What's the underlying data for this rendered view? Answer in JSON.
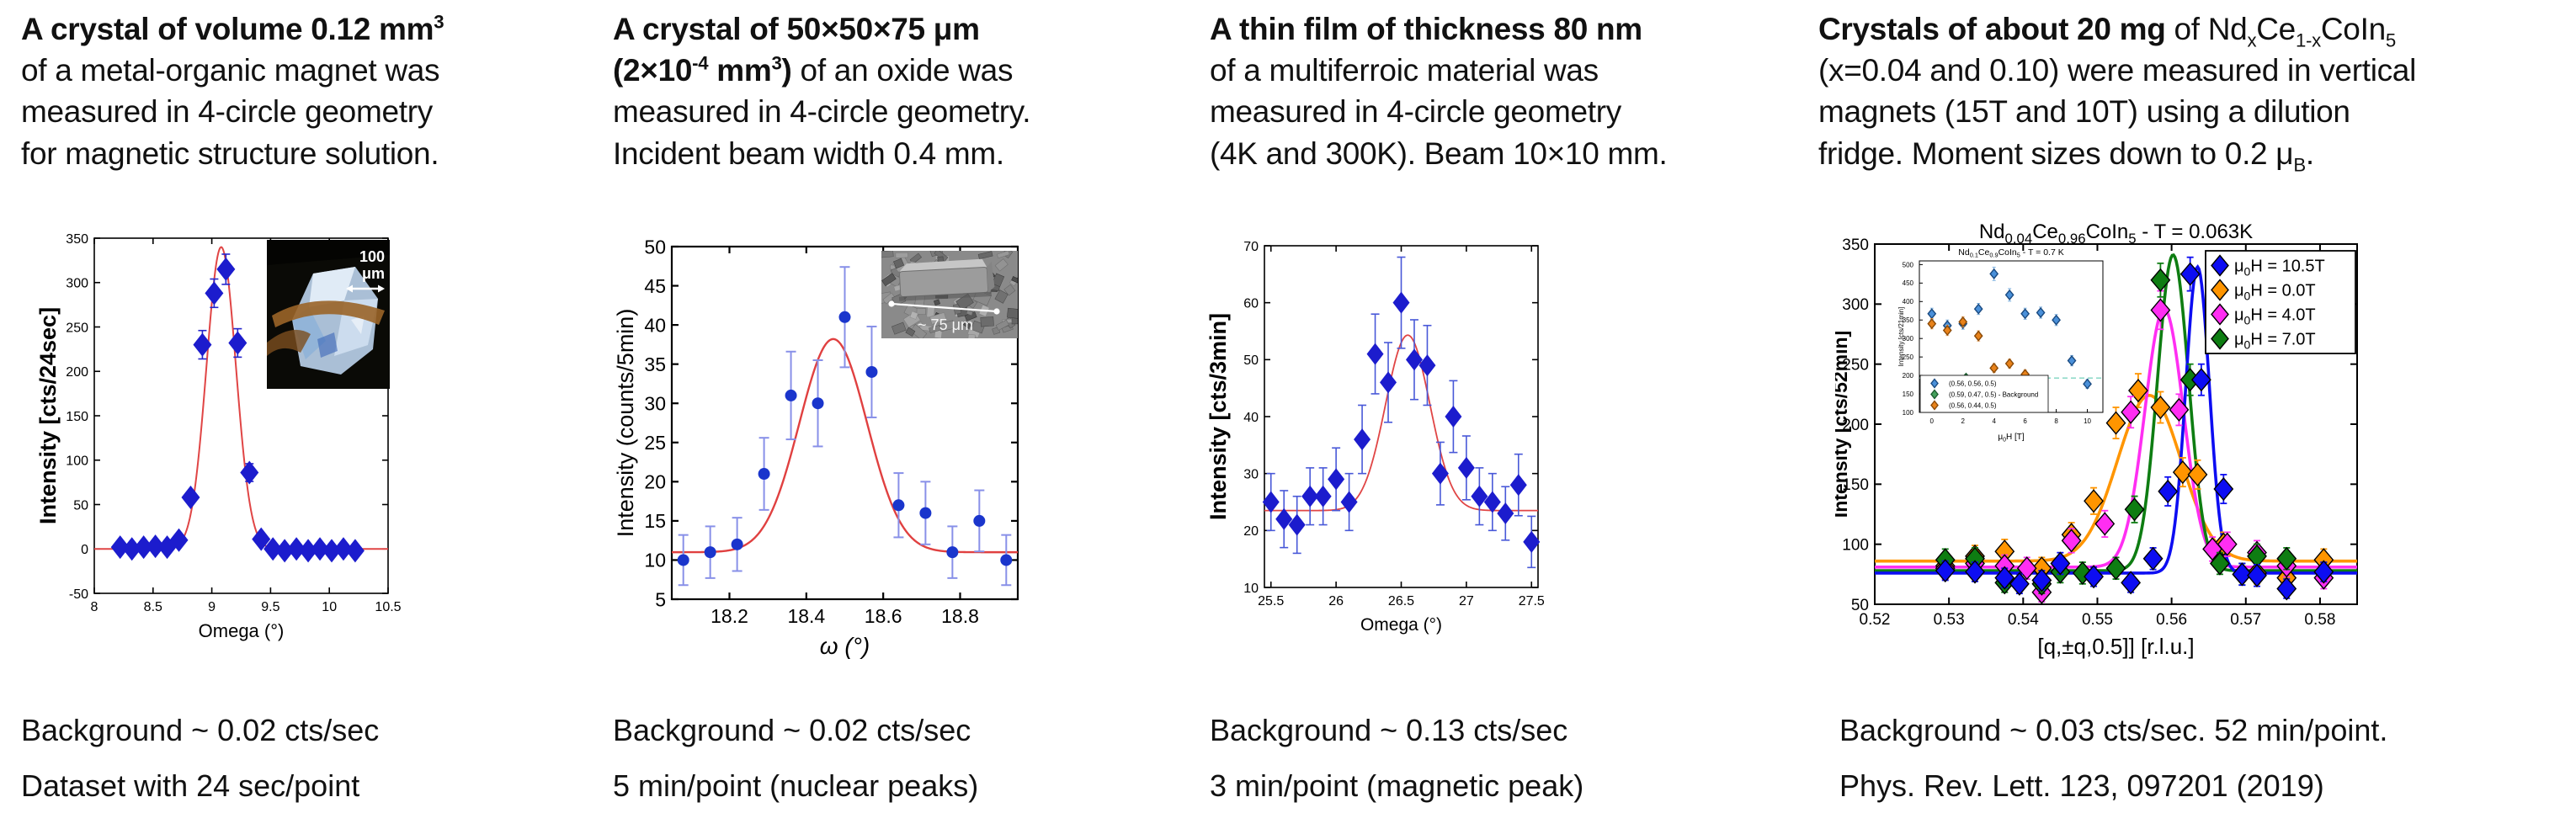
{
  "page": {
    "background": "#ffffff",
    "text_color": "#111111"
  },
  "columns": [
    {
      "heading": [
        {
          "t": "A crystal of volume 0.12 mm",
          "b": true
        },
        {
          "t": "3",
          "b": true,
          "sup": true
        },
        {
          "br": true
        },
        {
          "t": "of a metal-organic magnet was"
        },
        {
          "br": true
        },
        {
          "t": "measured in 4-circle geometry"
        },
        {
          "br": true
        },
        {
          "t": "for magnetic structure solution."
        }
      ],
      "footer_lines": [
        "Background ~ 0.02 cts/sec",
        "Dataset with 24 sec/point"
      ]
    },
    {
      "heading": [
        {
          "t": "A crystal of 50×50×75 μm",
          "b": true
        },
        {
          "br": true
        },
        {
          "t": "(2×10",
          "b": true
        },
        {
          "t": "-4",
          "b": true,
          "sup": true
        },
        {
          "t": " mm",
          "b": true
        },
        {
          "t": "3",
          "b": true,
          "sup": true
        },
        {
          "t": ")",
          "b": true
        },
        {
          "t": " of an oxide was"
        },
        {
          "br": true
        },
        {
          "t": "measured in 4-circle geometry."
        },
        {
          "br": true
        },
        {
          "t": "Incident beam width 0.4 mm."
        }
      ],
      "footer_lines": [
        "Background ~ 0.02 cts/sec",
        "5 min/point (nuclear peaks)"
      ]
    },
    {
      "heading": [
        {
          "t": "A thin film of thickness 80 nm",
          "b": true
        },
        {
          "br": true
        },
        {
          "t": "of a multiferroic material was"
        },
        {
          "br": true
        },
        {
          "t": "measured in 4-circle geometry"
        },
        {
          "br": true
        },
        {
          "t": "(4K and 300K). Beam 10×10 mm."
        }
      ],
      "footer_lines": [
        "Background ~ 0.13 cts/sec",
        "3 min/point (magnetic peak)"
      ]
    },
    {
      "heading": [
        {
          "t": "Crystals of about 20 mg",
          "b": true
        },
        {
          "t": " of Nd"
        },
        {
          "t": "x",
          "sub": true
        },
        {
          "t": "Ce"
        },
        {
          "t": "1-x",
          "sub": true
        },
        {
          "t": "CoIn"
        },
        {
          "t": "5",
          "sub": true
        },
        {
          "br": true
        },
        {
          "t": "(x=0.04 and 0.10) were measured in vertical"
        },
        {
          "br": true
        },
        {
          "t": "magnets (15T and 10T) using a dilution"
        },
        {
          "br": true
        },
        {
          "t": "fridge. Moment sizes down to 0.2 μ"
        },
        {
          "t": "B",
          "sub": true
        },
        {
          "t": "."
        }
      ],
      "footer_lines": [
        "Background ~ 0.03 cts/sec. 52 min/point.",
        "Phys. Rev. Lett. 123, 097201 (2019)"
      ]
    }
  ],
  "chart_data": [
    {
      "type": "scatter",
      "title": "",
      "xlabel": "Omega (°)",
      "ylabel": "Intensity [cts/24sec]",
      "xlim": [
        8,
        10.5
      ],
      "ylim": [
        -50,
        350
      ],
      "xticks": [
        8,
        8.5,
        9,
        9.5,
        10,
        10.5
      ],
      "yticks": [
        -50,
        0,
        50,
        100,
        150,
        200,
        250,
        300,
        350
      ],
      "grid": false,
      "fit": {
        "color": "#e04545",
        "baseline": 0,
        "amplitude": 340,
        "center": 9.08,
        "sigma": 0.125
      },
      "series": [
        {
          "name": "rocking-scan",
          "marker": "diamond",
          "color": "#1c1ccd",
          "err_color": "#2525cc",
          "x": [
            8.22,
            8.32,
            8.42,
            8.52,
            8.62,
            8.72,
            8.82,
            8.92,
            9.02,
            9.12,
            9.22,
            9.32,
            9.42,
            9.52,
            9.62,
            9.72,
            9.82,
            9.92,
            10.02,
            10.12,
            10.22
          ],
          "y": [
            2,
            0,
            2,
            3,
            2,
            10,
            58,
            230,
            288,
            315,
            232,
            86,
            11,
            0,
            -2,
            0,
            -2,
            0,
            -2,
            0,
            -2
          ],
          "err": [
            4,
            4,
            4,
            4,
            4,
            5,
            6,
            16,
            16,
            17,
            16,
            10,
            5,
            4,
            4,
            4,
            4,
            4,
            4,
            4,
            4
          ]
        }
      ],
      "inset_photo": {
        "kind": "optical-crystal-photo",
        "label_lines": [
          "100",
          "μm"
        ]
      }
    },
    {
      "type": "scatter",
      "title": "",
      "xlabel": "ω (°)",
      "ylabel": "Intensity (counts/5min)",
      "xlim": [
        18.05,
        18.95
      ],
      "ylim": [
        5,
        50
      ],
      "xticks": [
        18.2,
        18.4,
        18.6,
        18.8
      ],
      "yticks": [
        5,
        10,
        15,
        20,
        25,
        30,
        35,
        40,
        45,
        50
      ],
      "grid": false,
      "fit": {
        "color": "#e04040",
        "baseline": 11,
        "amplitude": 27.2,
        "center": 18.47,
        "sigma": 0.088
      },
      "series": [
        {
          "name": "nuclear-peak-scan",
          "marker": "circle",
          "color": "#1a35cc",
          "err_color": "#8890e8",
          "x": [
            18.08,
            18.15,
            18.22,
            18.29,
            18.36,
            18.43,
            18.5,
            18.57,
            18.64,
            18.71,
            18.78,
            18.85,
            18.92
          ],
          "y": [
            10,
            11,
            12,
            21,
            31,
            30,
            41,
            34,
            17,
            16,
            11,
            15,
            10
          ],
          "err": [
            3.2,
            3.3,
            3.4,
            4.6,
            5.6,
            5.5,
            6.4,
            5.8,
            4.1,
            4.0,
            3.3,
            3.9,
            3.2
          ]
        }
      ],
      "inset_photo": {
        "kind": "sem-crystal-photo",
        "label_lines": [
          "~ 75 μm"
        ]
      }
    },
    {
      "type": "scatter",
      "title": "",
      "xlabel": "Omega (°)",
      "ylabel": "Intensity [cts/3min]",
      "xlim": [
        25.45,
        27.55
      ],
      "ylim": [
        10,
        70
      ],
      "xticks": [
        25.5,
        26,
        26.5,
        27,
        27.5
      ],
      "yticks": [
        10,
        20,
        30,
        40,
        50,
        60,
        70
      ],
      "grid": false,
      "fit": {
        "color": "#e04545",
        "baseline": 23.5,
        "amplitude": 30.8,
        "center": 26.55,
        "sigma": 0.17
      },
      "series": [
        {
          "name": "magnetic-peak-scan",
          "marker": "diamond",
          "color": "#1c1ccd",
          "err_color": "#4858d8",
          "x": [
            25.5,
            25.6,
            25.7,
            25.8,
            25.9,
            26.0,
            26.1,
            26.2,
            26.3,
            26.4,
            26.5,
            26.6,
            26.7,
            26.8,
            26.9,
            27.0,
            27.1,
            27.2,
            27.3,
            27.4,
            27.5
          ],
          "y": [
            25,
            22,
            21,
            26,
            26,
            29,
            25,
            36,
            51,
            46,
            60,
            50,
            49,
            30,
            40,
            31,
            26,
            25,
            23,
            28,
            18
          ],
          "err": [
            5,
            5,
            5,
            5,
            5,
            5.5,
            5,
            6,
            7,
            7,
            8,
            7,
            7,
            5.5,
            6.3,
            5.6,
            5,
            5,
            4.7,
            5.4,
            4.5
          ]
        }
      ]
    },
    {
      "type": "scatter",
      "title_rich": [
        {
          "t": "Nd"
        },
        {
          "t": "0.04",
          "sub": true
        },
        {
          "t": "Ce"
        },
        {
          "t": "0.96",
          "sub": true
        },
        {
          "t": "CoIn"
        },
        {
          "t": "5",
          "sub": true
        },
        {
          "t": " - T = 0.063K"
        }
      ],
      "xlabel": "[q,±q,0.5]] [r.l.u.]",
      "ylabel": "Intensity [cts/52min]",
      "xlim": [
        0.52,
        0.585
      ],
      "ylim": [
        50,
        350
      ],
      "xticks": [
        0.52,
        0.53,
        0.54,
        0.55,
        0.56,
        0.57,
        0.58
      ],
      "yticks": [
        50,
        100,
        150,
        200,
        250,
        300,
        350
      ],
      "grid": false,
      "show_legend": true,
      "series": [
        {
          "name_rich": [
            {
              "t": "μ"
            },
            {
              "t": "0",
              "sub": true
            },
            {
              "t": "H = 10.5T"
            }
          ],
          "marker": "diamond",
          "color": "#0d0df2",
          "edge": "#000000",
          "err_color": "#0d0df2",
          "fit": {
            "baseline": 76,
            "amplitude": 255,
            "center": 0.5635,
            "sigma": 0.0016,
            "color": "#0d0df2"
          },
          "x": [
            0.5295,
            0.5335,
            0.5375,
            0.5395,
            0.5425,
            0.545,
            0.5495,
            0.5545,
            0.5575,
            0.5595,
            0.5625,
            0.564,
            0.567,
            0.5695,
            0.5715,
            0.5755,
            0.5805
          ],
          "y": [
            78,
            77,
            72,
            67,
            70,
            84,
            73,
            68,
            88,
            144,
            325,
            237,
            146,
            75,
            74,
            63,
            77
          ],
          "err": [
            8,
            8,
            8,
            8,
            8,
            9,
            8,
            8,
            9,
            12,
            14,
            13,
            12,
            9,
            9,
            8,
            8
          ]
        },
        {
          "name_rich": [
            {
              "t": "μ"
            },
            {
              "t": "0",
              "sub": true
            },
            {
              "t": "H = 0.0T"
            }
          ],
          "marker": "diamond",
          "color": "#ff9500",
          "edge": "#000000",
          "err_color": "#ff9500",
          "fit": {
            "baseline": 86,
            "amplitude": 138,
            "center": 0.557,
            "sigma": 0.0043,
            "color": "#ff9500"
          },
          "x": [
            0.5295,
            0.5335,
            0.5375,
            0.5425,
            0.5465,
            0.5495,
            0.5525,
            0.5555,
            0.5585,
            0.5615,
            0.5635,
            0.567,
            0.5715,
            0.5755,
            0.5805
          ],
          "y": [
            82,
            90,
            94,
            80,
            108,
            136,
            201,
            228,
            214,
            160,
            158,
            100,
            76,
            72,
            87
          ],
          "err": [
            9,
            9,
            10,
            9,
            10,
            11,
            13,
            14,
            13,
            12,
            12,
            10,
            9,
            9,
            9
          ]
        },
        {
          "name_rich": [
            {
              "t": "μ"
            },
            {
              "t": "0",
              "sub": true
            },
            {
              "t": "H = 4.0T"
            }
          ],
          "marker": "diamond",
          "color": "#ff2ef2",
          "edge": "#000000",
          "err_color": "#ff2ef2",
          "fit": {
            "baseline": 81,
            "amplitude": 215,
            "center": 0.559,
            "sigma": 0.0026,
            "color": "#ff2ef2"
          },
          "x": [
            0.5295,
            0.5335,
            0.5375,
            0.5405,
            0.5425,
            0.5465,
            0.551,
            0.5545,
            0.5585,
            0.561,
            0.5655,
            0.5675,
            0.5715,
            0.5755,
            0.5805
          ],
          "y": [
            80,
            84,
            82,
            80,
            60,
            103,
            117,
            210,
            295,
            212,
            96,
            100,
            93,
            82,
            72
          ],
          "err": [
            9,
            9,
            9,
            9,
            8,
            10,
            11,
            13,
            16,
            13,
            10,
            10,
            10,
            9,
            9
          ]
        },
        {
          "name_rich": [
            {
              "t": "μ"
            },
            {
              "t": "0",
              "sub": true
            },
            {
              "t": "H = 7.0T"
            }
          ],
          "marker": "diamond",
          "color": "#0e7d12",
          "edge": "#000000",
          "err_color": "#0e7d12",
          "fit": {
            "baseline": 78,
            "amplitude": 263,
            "center": 0.5602,
            "sigma": 0.0021,
            "color": "#0e7d12"
          },
          "x": [
            0.5295,
            0.5335,
            0.5375,
            0.5425,
            0.545,
            0.548,
            0.5525,
            0.555,
            0.5585,
            0.5625,
            0.5665,
            0.5695,
            0.5715,
            0.5755
          ],
          "y": [
            87,
            88,
            68,
            67,
            77,
            76,
            80,
            129,
            320,
            237,
            84,
            75,
            90,
            88
          ],
          "err": [
            9,
            9,
            8,
            8,
            9,
            9,
            9,
            11,
            14,
            13,
            9,
            9,
            10,
            9
          ]
        }
      ],
      "inset_chart": {
        "title_rich": [
          {
            "t": "Nd"
          },
          {
            "t": "0.1",
            "sub": true
          },
          {
            "t": "Ce"
          },
          {
            "t": "0.9",
            "sub": true
          },
          {
            "t": "CoIn"
          },
          {
            "t": "5",
            "sub": true
          },
          {
            "t": " - T = 0.7 K"
          }
        ],
        "xlabel_rich": [
          {
            "t": "μ"
          },
          {
            "t": "0",
            "sub": true
          },
          {
            "t": "H [T]"
          }
        ],
        "ylabel": "Intensity [cts/21min]",
        "xlim": [
          -0.8,
          11
        ],
        "ylim": [
          100,
          510
        ],
        "xticks": [
          0,
          2,
          4,
          6,
          8,
          10
        ],
        "yticks": [
          100,
          150,
          200,
          250,
          300,
          350,
          400,
          450,
          500
        ],
        "hline": {
          "y": 193,
          "color": "#7fd4c0"
        },
        "show_legend": true,
        "series": [
          {
            "name": "(0.56, 0.56, 0.5)",
            "marker": "diamond",
            "color": "#4a90d9",
            "edge": "#1a4a80",
            "err_color": "#7fb2e0",
            "x": [
              0,
              1,
              2,
              3,
              4,
              5,
              6,
              7,
              8,
              9,
              10
            ],
            "y": [
              367,
              335,
              340,
              380,
              475,
              418,
              367,
              370,
              350,
              240,
              177
            ],
            "err": [
              15,
              15,
              15,
              15,
              18,
              17,
              15,
              15,
              15,
              14,
              12
            ]
          },
          {
            "name": "(0.59, 0.47, 0.5) - Background",
            "marker": "diamond",
            "color": "#44a05c",
            "edge": "#1d5c30",
            "err_color": "#80c090",
            "x": [
              2.2
            ],
            "y": [
              193
            ],
            "err": [
              10
            ]
          },
          {
            "name": "(0.56, 0.44, 0.5)",
            "marker": "diamond",
            "color": "#e8821a",
            "edge": "#8a4a08",
            "err_color": "#f0b070",
            "x": [
              0,
              1,
              2,
              3,
              4,
              5,
              6
            ],
            "y": [
              340,
              322,
              345,
              307,
              220,
              232,
              203
            ],
            "err": [
              14,
              14,
              14,
              14,
              12,
              12,
              12
            ]
          }
        ]
      }
    }
  ]
}
